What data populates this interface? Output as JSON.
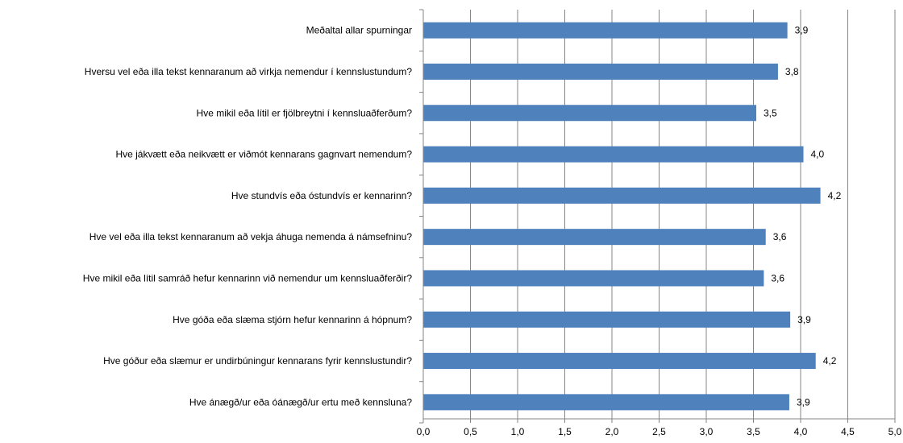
{
  "chart_data": {
    "type": "bar",
    "orientation": "horizontal",
    "categories": [
      "Meðaltal allar spurningar",
      "Hversu vel eða illa tekst kennaranum að virkja nemendur í kennslustundum?",
      "Hve mikil eða lítil er fjölbreytni í kennsluaðferðum?",
      "Hve jákvætt eða neikvætt er viðmót kennarans gagnvart nemendum?",
      "Hve stundvís eða óstundvís er kennarinn?",
      "Hve vel eða illa tekst kennaranum að vekja áhuga nemenda á námsefninu?",
      "Hve mikil eða lítil samráð hefur kennarinn við nemendur um kennsluaðferðir?",
      "Hve góða eða slæma stjórn hefur kennarinn á hópnum?",
      "Hve góður eða slæmur er undirbúningur kennarans fyrir kennslustundir?",
      "Hve ánægð/ur eða óánægð/ur ertu með kennsluna?"
    ],
    "values": [
      3.86,
      3.76,
      3.53,
      4.03,
      4.21,
      3.63,
      3.61,
      3.89,
      4.16,
      3.88
    ],
    "value_labels": [
      "3,9",
      "3,8",
      "3,5",
      "4,0",
      "4,2",
      "3,6",
      "3,6",
      "3,9",
      "4,2",
      "3,9"
    ],
    "xlim": [
      0,
      5
    ],
    "x_ticks": [
      "0,0",
      "0,5",
      "1,0",
      "1,5",
      "2,0",
      "2,5",
      "3,0",
      "3,5",
      "4,0",
      "4,5",
      "5,0"
    ],
    "grid": true,
    "legend": "none",
    "bar_color": "#4f81bd",
    "grid_color": "#868686"
  }
}
